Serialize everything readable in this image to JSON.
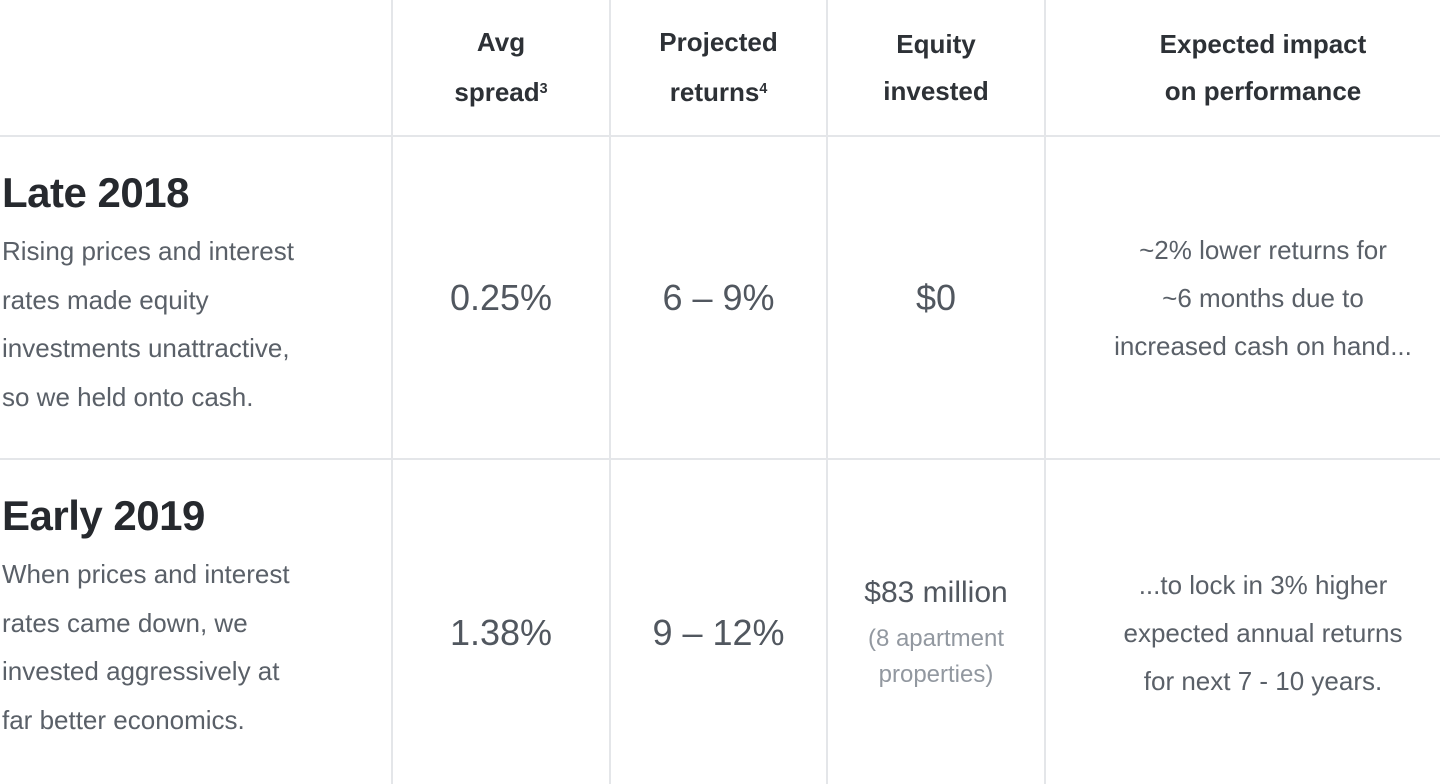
{
  "table": {
    "header": {
      "columns": [
        {
          "line1": "Avg",
          "line2": "spread",
          "sup": "3"
        },
        {
          "line1": "Projected",
          "line2": "returns",
          "sup": "4"
        },
        {
          "line1": "Equity",
          "line2": "invested",
          "sup": ""
        },
        {
          "line1": "Expected impact",
          "line2": "on performance",
          "sup": ""
        }
      ]
    },
    "rows": [
      {
        "period": "Late 2018",
        "description_lines": [
          "Rising prices and interest",
          "rates made equity",
          "investments unattractive,",
          "so we held onto cash."
        ],
        "avg_spread": "0.25%",
        "projected_returns": "6 – 9%",
        "equity_invested": "$0",
        "impact_lines": [
          "~2% lower returns for",
          "~6 months due to",
          "increased cash on hand..."
        ]
      },
      {
        "period": "Early 2019",
        "description_lines": [
          "When prices and interest",
          "rates came down, we",
          "invested aggressively at",
          "far better economics."
        ],
        "avg_spread": "1.38%",
        "projected_returns": "9 – 12%",
        "equity_invested": "$83 million",
        "equity_note_lines": [
          "(8 apartment",
          "properties)"
        ],
        "impact_lines": [
          "...to lock in 3% higher",
          "expected annual returns",
          "for next 7 - 10 years."
        ]
      }
    ]
  },
  "colors": {
    "border": "#e4e6e9",
    "header_text": "#2d3136",
    "title_text": "#26292e",
    "body_text": "#5a6068",
    "value_text": "#51575f",
    "note_text": "#9298a0",
    "background": "#ffffff"
  }
}
